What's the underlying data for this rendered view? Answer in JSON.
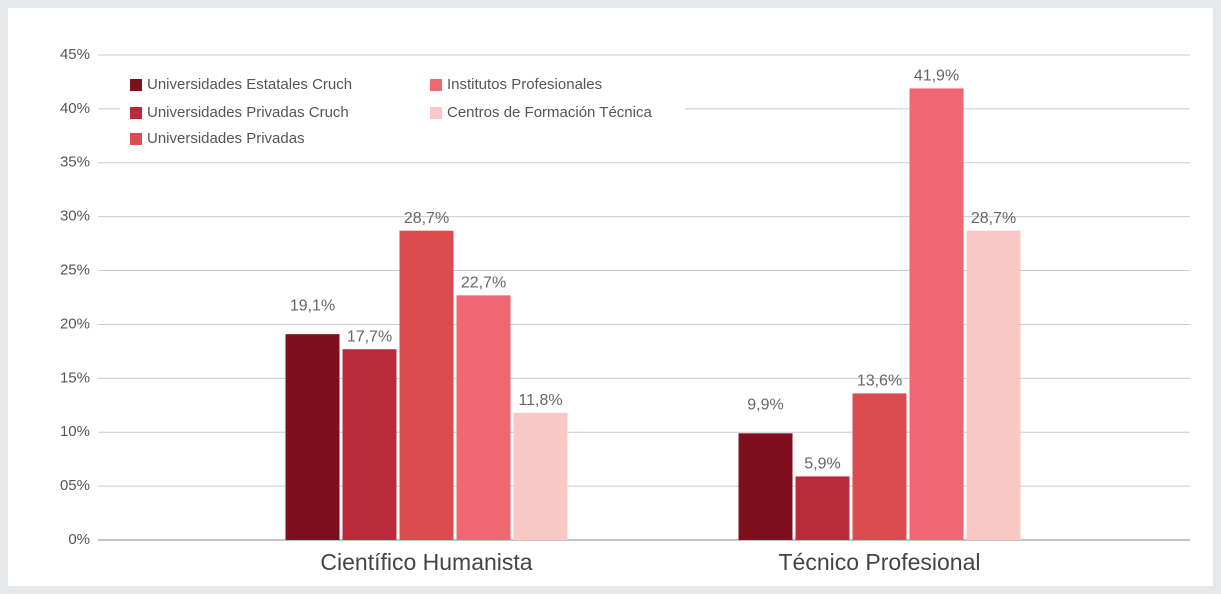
{
  "chart_data": {
    "type": "bar",
    "categories": [
      "Científico Humanista",
      "Técnico Profesional"
    ],
    "series": [
      {
        "name": "Universidades Estatales Cruch",
        "color": "#7f0f1e",
        "values": [
          19.1,
          9.9
        ],
        "value_labels": [
          "19,1%",
          "9,9%"
        ]
      },
      {
        "name": "Universidades Privadas Cruch",
        "color": "#b92b3a",
        "values": [
          17.7,
          5.9
        ],
        "value_labels": [
          "17,7%",
          "5,9%"
        ]
      },
      {
        "name": "Universidades Privadas",
        "color": "#dc4b4f",
        "values": [
          28.7,
          13.6
        ],
        "value_labels": [
          "28,7%",
          "13,6%"
        ]
      },
      {
        "name": "Institutos Profesionales",
        "color": "#f06672",
        "values": [
          22.7,
          41.9
        ],
        "value_labels": [
          "22,7%",
          "41,9%"
        ]
      },
      {
        "name": "Centros de Formación Técnica",
        "color": "#f9c8c4",
        "values": [
          11.8,
          28.7
        ],
        "value_labels": [
          "11,8%",
          "28,7%"
        ]
      }
    ],
    "ylim": [
      0,
      45
    ],
    "yticks": [
      {
        "value": 0,
        "label": "0%"
      },
      {
        "value": 5,
        "label": "05%"
      },
      {
        "value": 10,
        "label": "10%"
      },
      {
        "value": 15,
        "label": "15%"
      },
      {
        "value": 20,
        "label": "20%"
      },
      {
        "value": 25,
        "label": "25%"
      },
      {
        "value": 30,
        "label": "30%"
      },
      {
        "value": 35,
        "label": "35%"
      },
      {
        "value": 40,
        "label": "40%"
      },
      {
        "value": 45,
        "label": "45%"
      }
    ],
    "grid": true,
    "legend": "top-left"
  }
}
